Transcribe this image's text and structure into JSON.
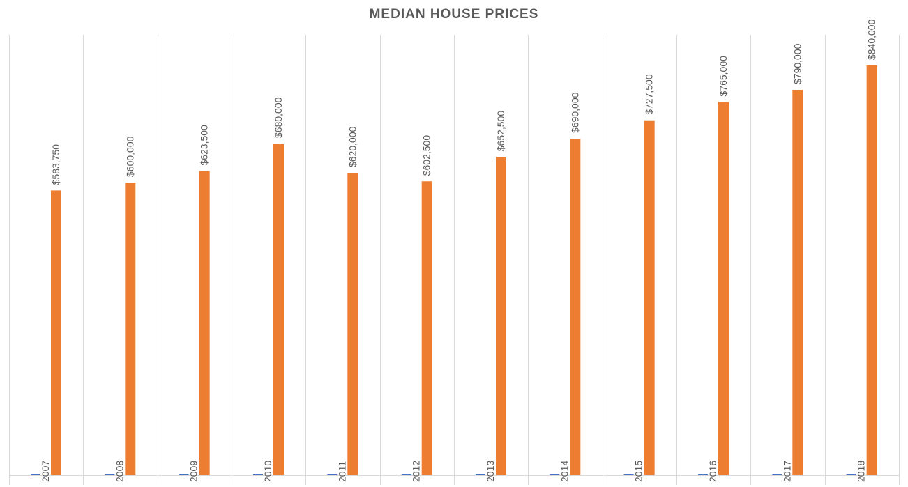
{
  "chart_data": {
    "type": "bar",
    "title": "MEDIAN HOUSE PRICES",
    "categories": [
      "2007",
      "2008",
      "2009",
      "2010",
      "2011",
      "2012",
      "2013",
      "2014",
      "2015",
      "2016",
      "2017",
      "2018"
    ],
    "series": [
      {
        "values": [
          0,
          0,
          0,
          0,
          0,
          0,
          0,
          0,
          0,
          0,
          0,
          0
        ],
        "color": "#4472C4"
      },
      {
        "values": [
          583750,
          600000,
          623500,
          680000,
          620000,
          602500,
          652500,
          690000,
          727500,
          765000,
          790000,
          840000
        ],
        "data_labels": [
          "$583,750",
          "$600,000",
          "$623,500",
          "$680,000",
          "$620,000",
          "$602,500",
          "$652,500",
          "$690,000",
          "$727,500",
          "$765,000",
          "$790,000",
          "$840,000"
        ],
        "color": "#ED7D31"
      }
    ],
    "xlabel": "",
    "ylabel": "",
    "ylim": [
      0,
      900000
    ],
    "grid": "vertical",
    "legend": "none"
  }
}
